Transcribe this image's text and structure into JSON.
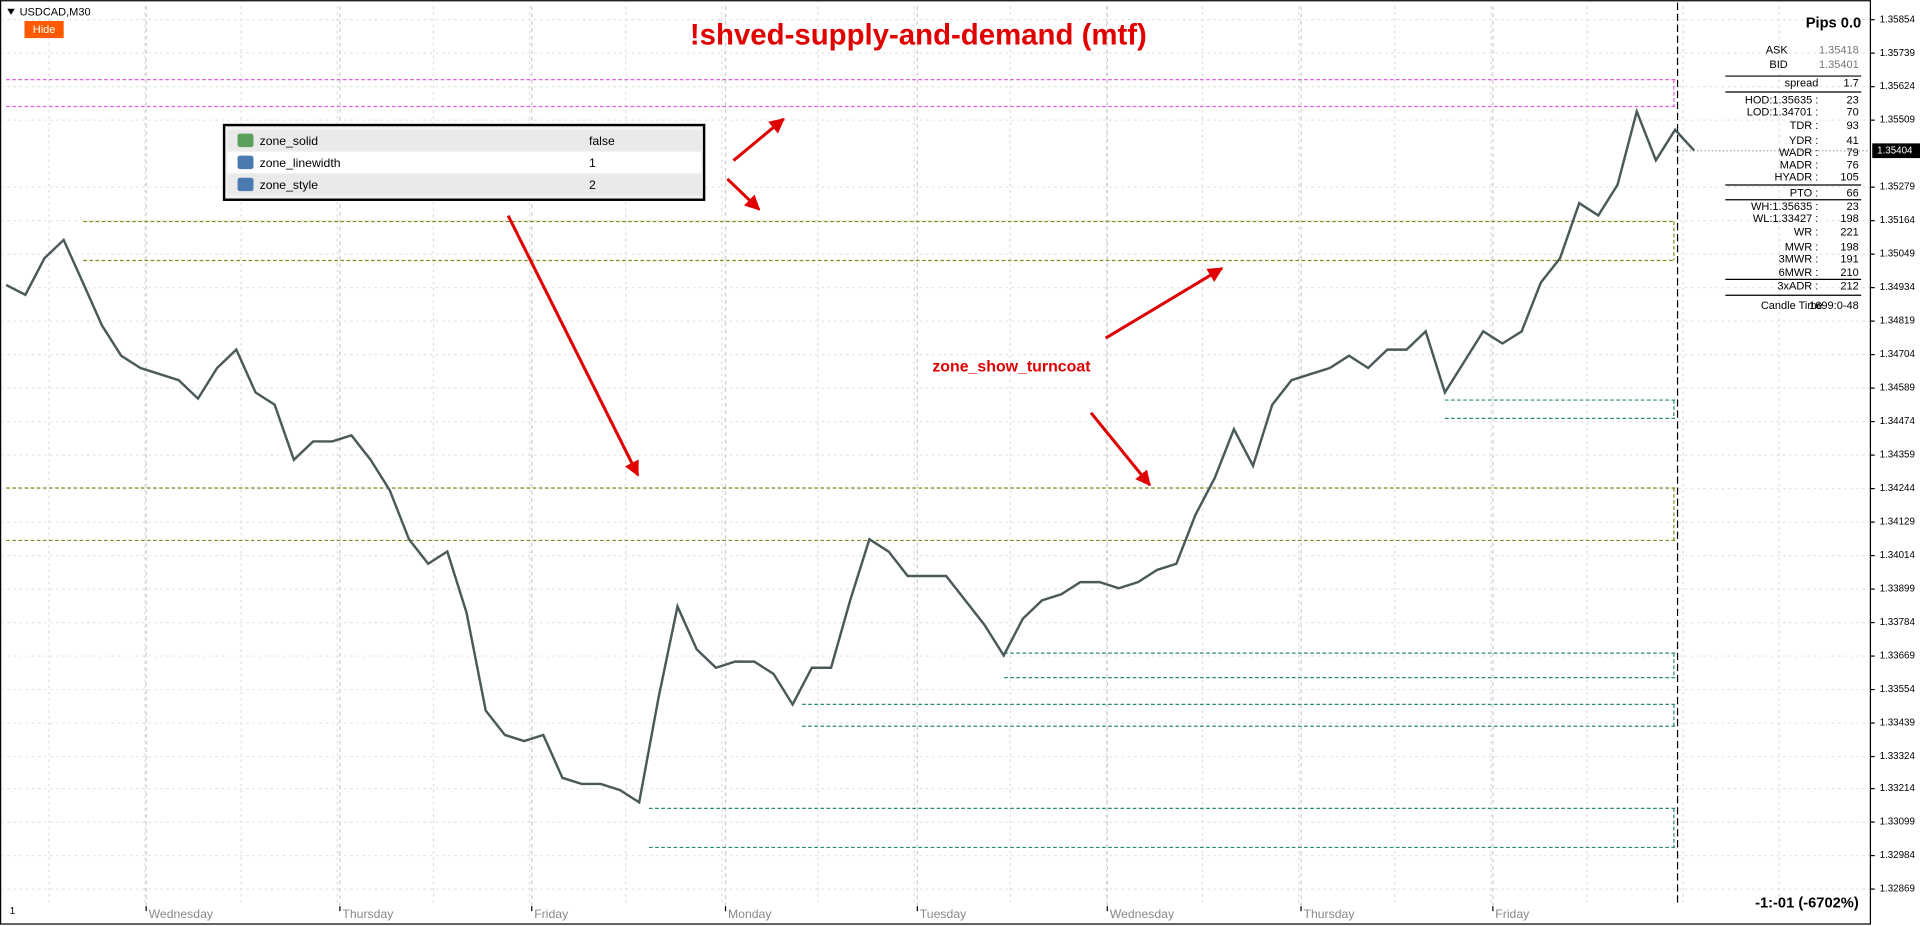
{
  "chart_data": {
    "type": "line",
    "title": "!shved-supply-and-demand (mtf)",
    "series": [
      {
        "name": "USDCAD,M30",
        "color": "#4a5a5a",
        "values": [
          1.34943,
          1.34909,
          1.35035,
          1.35098,
          1.34951,
          1.34804,
          1.347,
          1.34658,
          1.34637,
          1.34616,
          1.34553,
          1.34658,
          1.34721,
          1.34574,
          1.34532,
          1.34343,
          1.34406,
          1.34406,
          1.34427,
          1.34343,
          1.34238,
          1.3407,
          1.33986,
          1.34028,
          1.33818,
          1.33482,
          1.33398,
          1.33377,
          1.33398,
          1.33251,
          1.3323,
          1.3323,
          1.33209,
          1.33167,
          1.33524,
          1.33839,
          1.33692,
          1.33629,
          1.3365,
          1.3365,
          1.33608,
          1.33503,
          1.33629,
          1.33629,
          1.3386,
          1.3407,
          1.34028,
          1.33944,
          1.33944,
          1.33944,
          1.3386,
          1.33776,
          1.33671,
          1.33797,
          1.3386,
          1.33881,
          1.33923,
          1.33923,
          1.33902,
          1.33923,
          1.33965,
          1.33986,
          1.34154,
          1.3428,
          1.34448,
          1.34322,
          1.34532,
          1.34616,
          1.34637,
          1.34658,
          1.347,
          1.34658,
          1.34721,
          1.34721,
          1.34784,
          1.34574,
          1.34679,
          1.34784,
          1.34742,
          1.34784,
          1.34951,
          1.35035,
          1.35224,
          1.35182,
          1.35287,
          1.35539,
          1.35371,
          1.35476,
          1.35404
        ]
      }
    ],
    "xlim": [
      0,
      88
    ],
    "xticks": [
      {
        "value": 7.3,
        "label": "Wednesday"
      },
      {
        "value": 17.4,
        "label": "Thursday"
      },
      {
        "value": 27.4,
        "label": "Friday"
      },
      {
        "value": 37.5,
        "label": "Monday"
      },
      {
        "value": 47.5,
        "label": "Tuesday"
      },
      {
        "value": 57.4,
        "label": "Wednesday"
      },
      {
        "value": 67.5,
        "label": "Thursday"
      },
      {
        "value": 77.5,
        "label": "Friday"
      }
    ],
    "ylim": [
      1.3281,
      1.359
    ],
    "yticks": [
      1.35854,
      1.35739,
      1.35624,
      1.35509,
      1.35279,
      1.35164,
      1.35049,
      1.34934,
      1.34819,
      1.34704,
      1.34589,
      1.34474,
      1.34359,
      1.34244,
      1.34129,
      1.34014,
      1.33899,
      1.33784,
      1.33669,
      1.33554,
      1.33439,
      1.33324,
      1.33214,
      1.33099,
      1.32984,
      1.32869
    ],
    "grid": true,
    "current_price": 1.35404,
    "zones": [
      {
        "top": 1.35648,
        "bottom": 1.35556,
        "color": "#e060e0"
      },
      {
        "top": 1.35161,
        "bottom": 1.35027,
        "color": "#8a8a20"
      },
      {
        "top": 1.34548,
        "bottom": 1.34485,
        "color": "#2a8a7a"
      },
      {
        "top": 1.34246,
        "bottom": 1.34066,
        "color": "#8a8a20"
      },
      {
        "top": 1.33679,
        "bottom": 1.33595,
        "color": "#2a8a7a"
      },
      {
        "top": 1.33503,
        "bottom": 1.33428,
        "color": "#2a8a7a"
      },
      {
        "top": 1.33146,
        "bottom": 1.33012,
        "color": "#2a8a7a"
      }
    ]
  },
  "hide_button": "Hide",
  "annotation": "zone_show_turncoat",
  "properties": [
    {
      "name": "zone_solid",
      "value": "false"
    },
    {
      "name": "zone_linewidth",
      "value": "1"
    },
    {
      "name": "zone_style",
      "value": "2"
    }
  ],
  "info_panel": {
    "title": "Pips 0.0",
    "rows": [
      [
        "ASK",
        "1.35418"
      ],
      [
        "BID",
        "1.35401"
      ],
      [
        "spread",
        "1.7"
      ],
      [
        "HOD:1.35635 :",
        "23"
      ],
      [
        "LOD:1.34701 :",
        "70"
      ],
      [
        "TDR :",
        "93"
      ],
      [
        "YDR :",
        "41"
      ],
      [
        "WADR :",
        "79"
      ],
      [
        "MADR :",
        "76"
      ],
      [
        "HYADR :",
        "105"
      ],
      [
        "PTO :",
        "66"
      ],
      [
        "WH:1.35635 :",
        "23"
      ],
      [
        "WL:1.33427 :",
        "198"
      ],
      [
        "WR :",
        "221"
      ],
      [
        "MWR :",
        "198"
      ],
      [
        "3MWR :",
        "191"
      ],
      [
        "6MWR :",
        "210"
      ],
      [
        "3xADR :",
        "212"
      ],
      [
        "Candle Time",
        "1699:0-48"
      ]
    ]
  },
  "footer": {
    "left": "1",
    "right": "-1:-01 (-6702%)"
  }
}
